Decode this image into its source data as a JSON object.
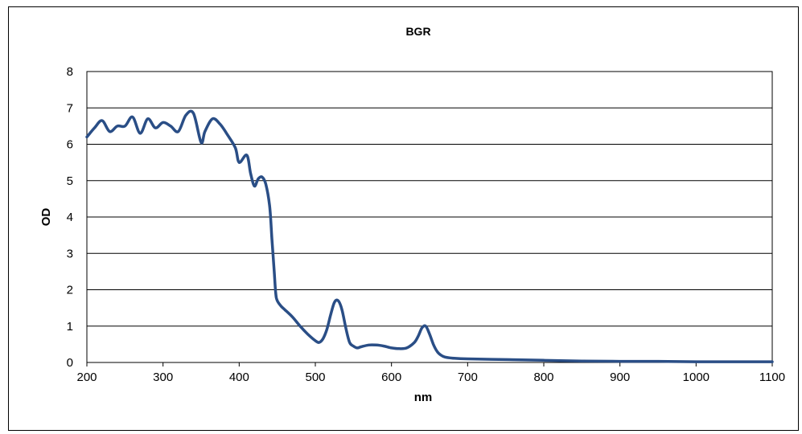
{
  "chart_data": {
    "type": "line",
    "title": "BGR",
    "xlabel": "nm",
    "ylabel": "OD",
    "xlim": [
      200,
      1100
    ],
    "ylim": [
      0,
      8
    ],
    "xticks": [
      200,
      300,
      400,
      500,
      600,
      700,
      800,
      900,
      1000,
      1100
    ],
    "yticks": [
      0,
      1,
      2,
      3,
      4,
      5,
      6,
      7,
      8
    ],
    "grid": "horizontal",
    "legend": "none",
    "series": [
      {
        "color": "#2a4e86",
        "x": [
          200,
          210,
          220,
          230,
          240,
          250,
          260,
          270,
          280,
          290,
          300,
          310,
          320,
          330,
          340,
          350,
          355,
          365,
          375,
          385,
          395,
          400,
          410,
          415,
          420,
          425,
          430,
          435,
          440,
          443,
          446,
          448,
          450,
          455,
          460,
          470,
          480,
          490,
          500,
          505,
          510,
          515,
          520,
          525,
          530,
          535,
          540,
          545,
          550,
          555,
          560,
          570,
          580,
          590,
          600,
          610,
          620,
          630,
          635,
          640,
          645,
          650,
          655,
          660,
          665,
          670,
          680,
          700,
          750,
          800,
          850,
          900,
          950,
          1000,
          1050,
          1100
        ],
        "y": [
          6.2,
          6.45,
          6.65,
          6.35,
          6.5,
          6.5,
          6.75,
          6.3,
          6.7,
          6.45,
          6.6,
          6.5,
          6.35,
          6.8,
          6.85,
          6.05,
          6.35,
          6.7,
          6.55,
          6.25,
          5.9,
          5.5,
          5.7,
          5.2,
          4.85,
          5.05,
          5.1,
          4.9,
          4.3,
          3.4,
          2.5,
          1.9,
          1.7,
          1.55,
          1.45,
          1.25,
          1.0,
          0.78,
          0.6,
          0.55,
          0.65,
          0.9,
          1.3,
          1.65,
          1.7,
          1.45,
          0.95,
          0.55,
          0.45,
          0.4,
          0.43,
          0.48,
          0.48,
          0.45,
          0.4,
          0.38,
          0.4,
          0.55,
          0.72,
          0.95,
          1.0,
          0.78,
          0.5,
          0.3,
          0.2,
          0.15,
          0.12,
          0.1,
          0.08,
          0.06,
          0.04,
          0.03,
          0.03,
          0.02,
          0.02,
          0.02
        ]
      }
    ]
  }
}
